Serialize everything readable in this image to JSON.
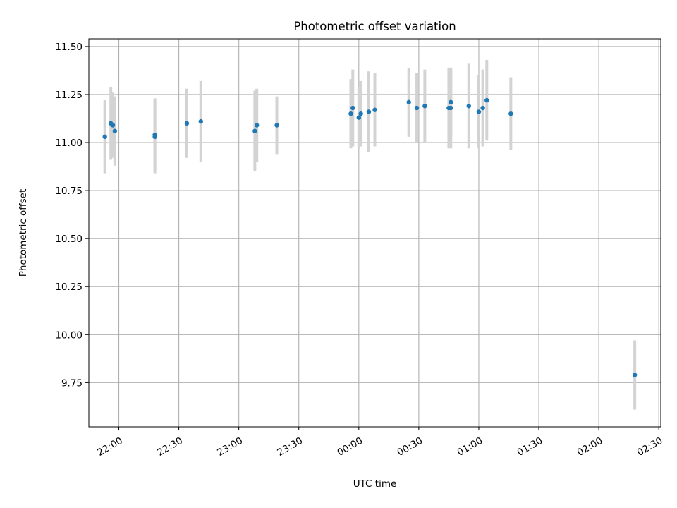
{
  "chart_data": {
    "type": "scatter",
    "title": "Photometric offset variation",
    "xlabel": "UTC time",
    "ylabel": "Photometric offset",
    "x_ticks": [
      "22:00",
      "22:30",
      "23:00",
      "23:30",
      "00:00",
      "00:30",
      "01:00",
      "01:30",
      "02:00",
      "02:30"
    ],
    "y_ticks": [
      "9.75",
      "10.00",
      "10.25",
      "10.50",
      "10.75",
      "11.00",
      "11.25",
      "11.50"
    ],
    "xlim": [
      "21:45",
      "02:31"
    ],
    "ylim": [
      9.52,
      11.54
    ],
    "grid": true,
    "colors": {
      "points": "#1f77b4",
      "errorbars": "#d3d3d3",
      "grid": "#b0b0b0"
    },
    "points": [
      {
        "time": "21:53",
        "y": 11.03,
        "err": 0.19
      },
      {
        "time": "21:56",
        "y": 11.1,
        "err": 0.19
      },
      {
        "time": "21:57",
        "y": 11.09,
        "err": 0.17
      },
      {
        "time": "21:58",
        "y": 11.06,
        "err": 0.18
      },
      {
        "time": "22:18",
        "y": 11.03,
        "err": 0.19
      },
      {
        "time": "22:18",
        "y": 11.04,
        "err": 0.19
      },
      {
        "time": "22:34",
        "y": 11.1,
        "err": 0.18
      },
      {
        "time": "22:41",
        "y": 11.11,
        "err": 0.21
      },
      {
        "time": "23:08",
        "y": 11.06,
        "err": 0.21
      },
      {
        "time": "23:09",
        "y": 11.09,
        "err": 0.19
      },
      {
        "time": "23:19",
        "y": 11.09,
        "err": 0.15
      },
      {
        "time": "23:56",
        "y": 11.15,
        "err": 0.18
      },
      {
        "time": "23:57",
        "y": 11.18,
        "err": 0.2
      },
      {
        "time": "00:00",
        "y": 11.13,
        "err": 0.16
      },
      {
        "time": "00:01",
        "y": 11.15,
        "err": 0.17
      },
      {
        "time": "00:05",
        "y": 11.16,
        "err": 0.21
      },
      {
        "time": "00:08",
        "y": 11.17,
        "err": 0.19
      },
      {
        "time": "00:25",
        "y": 11.21,
        "err": 0.18
      },
      {
        "time": "00:29",
        "y": 11.18,
        "err": 0.18
      },
      {
        "time": "00:33",
        "y": 11.19,
        "err": 0.19
      },
      {
        "time": "00:45",
        "y": 11.18,
        "err": 0.21
      },
      {
        "time": "00:46",
        "y": 11.18,
        "err": 0.21
      },
      {
        "time": "00:46",
        "y": 11.21,
        "err": 0.18
      },
      {
        "time": "00:55",
        "y": 11.19,
        "err": 0.22
      },
      {
        "time": "01:00",
        "y": 11.16,
        "err": 0.19
      },
      {
        "time": "01:02",
        "y": 11.18,
        "err": 0.2
      },
      {
        "time": "01:04",
        "y": 11.22,
        "err": 0.21
      },
      {
        "time": "01:16",
        "y": 11.15,
        "err": 0.19
      },
      {
        "time": "02:18",
        "y": 9.79,
        "err": 0.18
      }
    ]
  }
}
